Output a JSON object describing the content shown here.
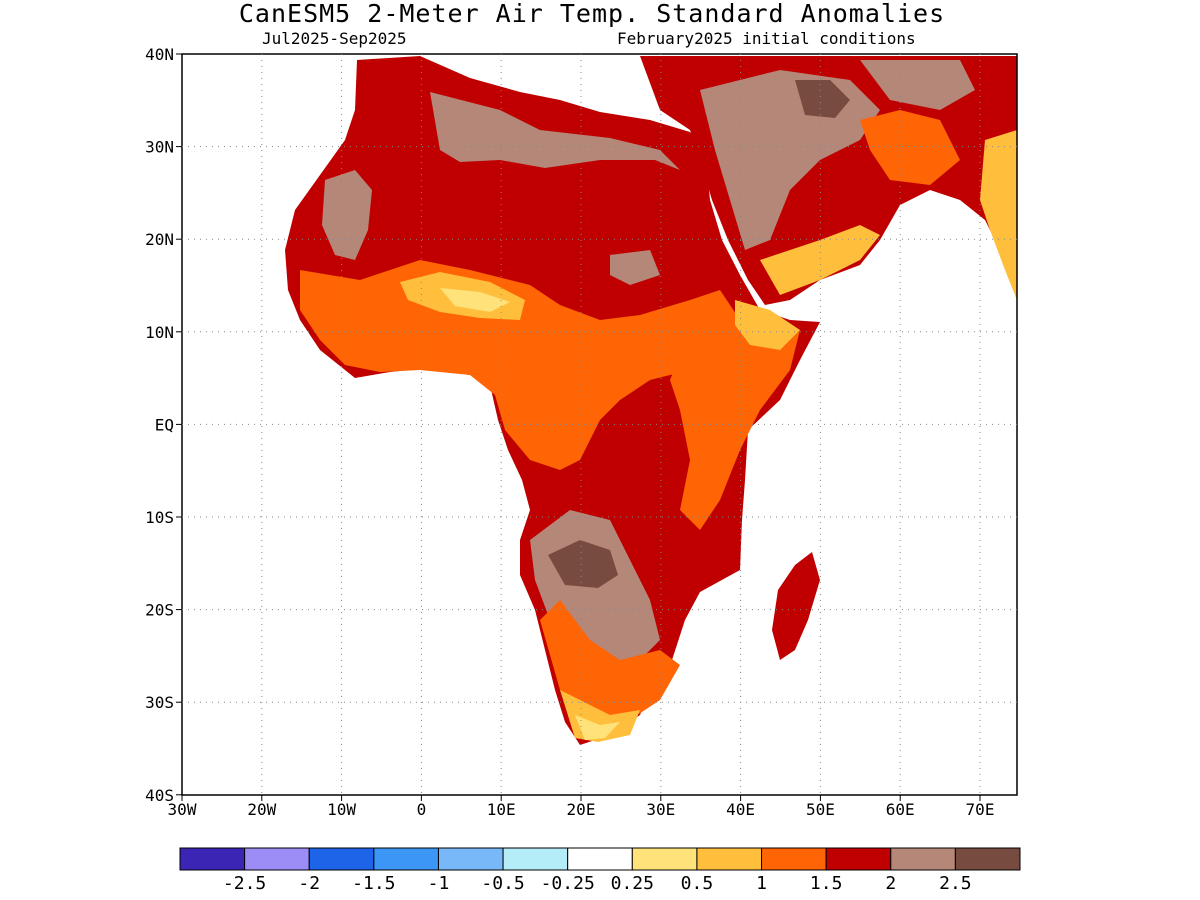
{
  "title": "CanESM5 2-Meter Air Temp. Standard Anomalies",
  "period": "Jul2025-Sep2025",
  "initial_conditions": "February2025 initial conditions",
  "lat_labels": [
    "40N",
    "30N",
    "20N",
    "10N",
    "EQ",
    "10S",
    "20S",
    "30S",
    "40S"
  ],
  "lon_labels": [
    "30W",
    "20W",
    "10W",
    "0",
    "10E",
    "20E",
    "30E",
    "40E",
    "50E",
    "60E",
    "70E"
  ],
  "colorbar": {
    "colors": [
      "#3b25b5",
      "#9c8cf5",
      "#1e64e8",
      "#3c96f5",
      "#78b8f8",
      "#b4ecf8",
      "#ffffff",
      "#ffe37a",
      "#ffbe3c",
      "#ff6405",
      "#c00000",
      "#b48778",
      "#784b41"
    ],
    "labels": [
      "-2.5",
      "-2",
      "-1.5",
      "-1",
      "-0.5",
      "-0.25",
      "0.25",
      "0.5",
      "1",
      "1.5",
      "2",
      "2.5"
    ]
  }
}
